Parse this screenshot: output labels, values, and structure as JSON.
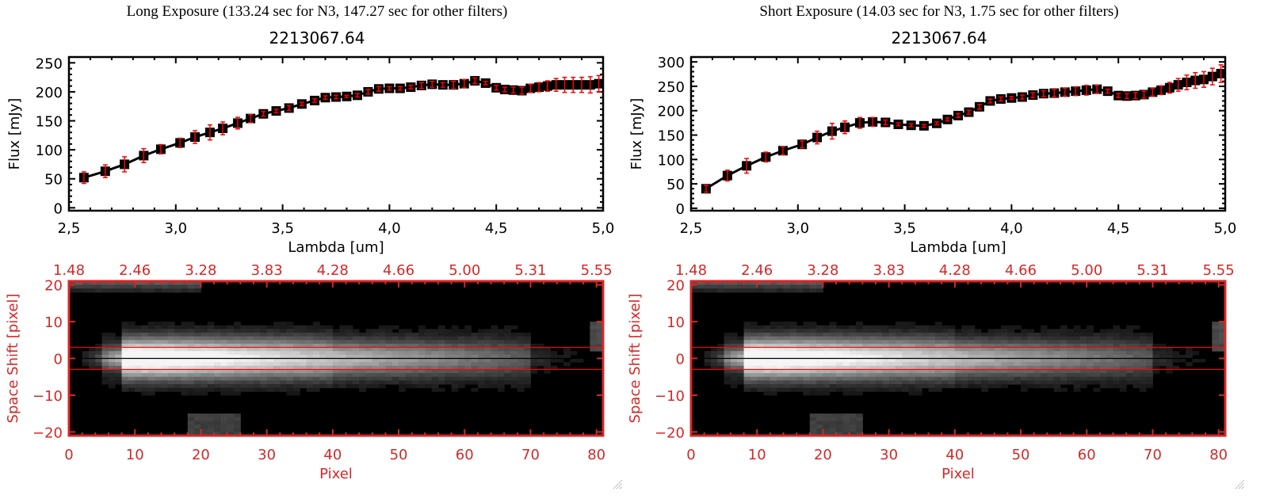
{
  "colors": {
    "axis_black": "#000000",
    "axis_red": "#d42828",
    "errorbar_red": "#ff0000",
    "marker": "#000000",
    "background": "#ffffff"
  },
  "chart_data": [
    {
      "id": "long",
      "type": "line",
      "title": "Long Exposure (133.24 sec for N3, 147.27 sec for other filters)",
      "subtitle": "2213067.64",
      "xlabel": "Lambda [um]",
      "ylabel": "Flux [mJy]",
      "xlim": [
        2.5,
        5.0
      ],
      "ylim": [
        -5,
        260
      ],
      "xticks": [
        2.5,
        3.0,
        3.5,
        4.0,
        4.5,
        5.0
      ],
      "xtick_labels": [
        "2,5",
        "3,0",
        "3,5",
        "4,0",
        "4,5",
        "5,0"
      ],
      "yticks": [
        0,
        50,
        100,
        150,
        200,
        250
      ],
      "ytick_labels": [
        "0",
        "50",
        "100",
        "150",
        "200",
        "250"
      ],
      "x": [
        2.57,
        2.67,
        2.76,
        2.85,
        2.93,
        3.02,
        3.09,
        3.16,
        3.22,
        3.29,
        3.35,
        3.41,
        3.47,
        3.53,
        3.59,
        3.65,
        3.7,
        3.75,
        3.8,
        3.85,
        3.9,
        3.95,
        4.0,
        4.05,
        4.1,
        4.15,
        4.2,
        4.25,
        4.3,
        4.35,
        4.4,
        4.45,
        4.5,
        4.54,
        4.58,
        4.62,
        4.66,
        4.7,
        4.74,
        4.78,
        4.82,
        4.86,
        4.9,
        4.94,
        4.98
      ],
      "y": [
        52,
        63,
        75,
        90,
        101,
        112,
        122,
        130,
        137,
        146,
        154,
        162,
        167,
        172,
        179,
        185,
        190,
        191,
        192,
        194,
        200,
        205,
        206,
        206,
        208,
        211,
        213,
        212,
        212,
        214,
        219,
        215,
        207,
        204,
        203,
        202,
        206,
        208,
        210,
        212,
        212,
        212,
        212,
        212,
        214
      ],
      "yerr": [
        10,
        11,
        13,
        12,
        8,
        8,
        11,
        13,
        11,
        10,
        7,
        4,
        3,
        4,
        3,
        3,
        3,
        3,
        2,
        3,
        4,
        4,
        3,
        3,
        3,
        5,
        5,
        4,
        6,
        7,
        5,
        3,
        4,
        4,
        5,
        6,
        7,
        8,
        9,
        11,
        13,
        13,
        13,
        14,
        14
      ]
    },
    {
      "id": "short",
      "type": "line",
      "title": "Short Exposure (14.03 sec for N3, 1.75 sec for other filters)",
      "subtitle": "2213067.64",
      "xlabel": "Lambda [um]",
      "ylabel": "Flux [mJy]",
      "xlim": [
        2.5,
        5.0
      ],
      "ylim": [
        -5,
        310
      ],
      "xticks": [
        2.5,
        3.0,
        3.5,
        4.0,
        4.5,
        5.0
      ],
      "xtick_labels": [
        "2,5",
        "3,0",
        "3,5",
        "4,0",
        "4,5",
        "5,0"
      ],
      "yticks": [
        0,
        50,
        100,
        150,
        200,
        250,
        300
      ],
      "ytick_labels": [
        "0",
        "50",
        "100",
        "150",
        "200",
        "250",
        "300"
      ],
      "x": [
        2.57,
        2.67,
        2.76,
        2.85,
        2.93,
        3.02,
        3.09,
        3.16,
        3.22,
        3.29,
        3.35,
        3.41,
        3.47,
        3.53,
        3.59,
        3.65,
        3.7,
        3.75,
        3.8,
        3.85,
        3.9,
        3.95,
        4.0,
        4.05,
        4.1,
        4.15,
        4.2,
        4.25,
        4.3,
        4.35,
        4.4,
        4.45,
        4.5,
        4.54,
        4.58,
        4.62,
        4.66,
        4.7,
        4.74,
        4.78,
        4.82,
        4.86,
        4.9,
        4.94,
        4.98
      ],
      "y": [
        40,
        67,
        87,
        105,
        118,
        131,
        145,
        158,
        166,
        175,
        177,
        176,
        172,
        170,
        169,
        174,
        182,
        190,
        197,
        208,
        220,
        224,
        226,
        228,
        232,
        235,
        236,
        238,
        240,
        242,
        244,
        240,
        231,
        230,
        231,
        233,
        238,
        242,
        247,
        253,
        258,
        262,
        264,
        270,
        276
      ],
      "yerr": [
        7,
        11,
        15,
        10,
        8,
        7,
        13,
        16,
        13,
        11,
        9,
        5,
        3,
        3,
        3,
        3,
        3,
        4,
        4,
        5,
        4,
        4,
        3,
        4,
        5,
        6,
        7,
        8,
        9,
        10,
        8,
        4,
        4,
        5,
        6,
        7,
        8,
        9,
        11,
        13,
        15,
        16,
        16,
        17,
        18
      ]
    }
  ],
  "image_panel": {
    "ylabel": "Space Shift [pixel]",
    "xlabel": "Pixel",
    "xlim": [
      0,
      81
    ],
    "ylim": [
      -21,
      21
    ],
    "xticks": [
      0,
      10,
      20,
      30,
      40,
      50,
      60,
      70,
      80
    ],
    "xtick_labels": [
      "0",
      "10",
      "20",
      "30",
      "40",
      "50",
      "60",
      "70",
      "80"
    ],
    "yticks": [
      -20,
      -10,
      0,
      10,
      20
    ],
    "ytick_labels": [
      "−20",
      "−10",
      "0",
      "10",
      "20"
    ],
    "top_tick_labels": [
      "1.48",
      "2.46",
      "3.28",
      "3.83",
      "4.28",
      "4.66",
      "5.00",
      "5.31",
      "5.55"
    ],
    "aperture_lines": [
      3,
      -3
    ],
    "center_line": 0
  }
}
